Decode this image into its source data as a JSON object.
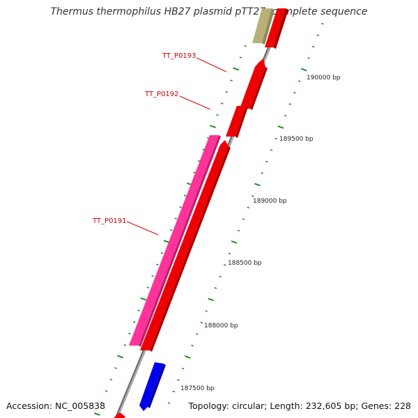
{
  "title": "Thermus thermophilus HB27 plasmid pTT27, complete sequence",
  "accession": "Accession: NC_005838",
  "topology": "Topology: circular; Length: 232,605 bp; Genes: 228",
  "colors": {
    "backbone": "#8a8a8a",
    "ticks": "#228b22",
    "gene_red": "#ee0000",
    "gene_pink": "#ff3399",
    "gene_blue": "#0000ee",
    "gene_olive": "#b8b078",
    "label_red": "#cc0000"
  },
  "gene_labels": [
    "TT_P0193",
    "TT_P0192",
    "TT_P0191"
  ],
  "bp_labels": [
    "190000 bp",
    "189500 bp",
    "189000 bp",
    "188500 bp",
    "188000 bp",
    "187500 bp"
  ]
}
